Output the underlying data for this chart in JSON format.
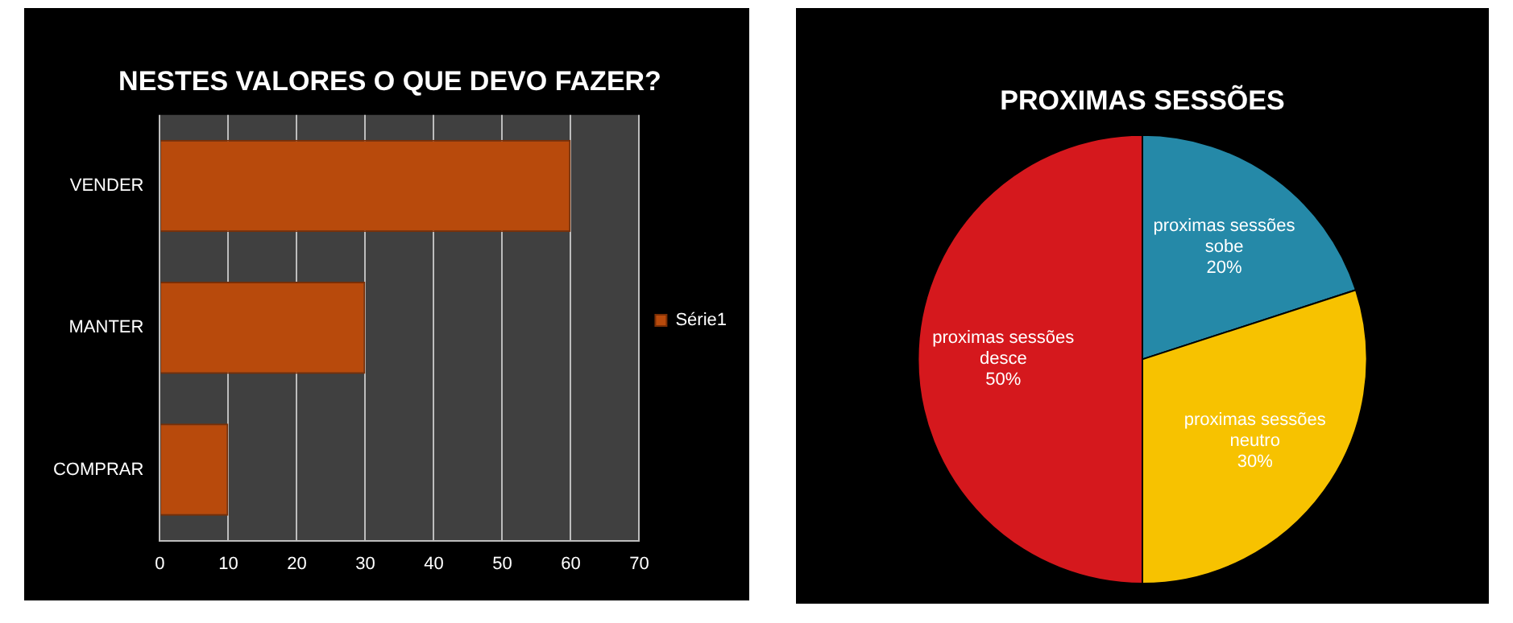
{
  "chart_data": [
    {
      "type": "bar",
      "title": "NESTES VALORES O QUE DEVO FAZER?",
      "orientation": "horizontal",
      "categories": [
        "VENDER",
        "MANTER",
        "COMPRAR"
      ],
      "series": [
        {
          "name": "Série1",
          "color": "#b84a0c",
          "values": [
            60,
            30,
            10
          ]
        }
      ],
      "xlim": [
        0,
        70
      ],
      "xticks": [
        0,
        10,
        20,
        30,
        40,
        50,
        60,
        70
      ],
      "grid": "x",
      "legend": "right"
    },
    {
      "type": "pie",
      "title": "PROXIMAS SESSÕES",
      "categories": [
        "proximas sessões sobe",
        "proximas sessões neutro",
        "proximas sessões desce"
      ],
      "values": [
        20,
        30,
        50
      ],
      "colors": [
        "#2589a8",
        "#f7c200",
        "#d5181d"
      ],
      "value_labels": [
        "20%",
        "30%",
        "50%"
      ]
    }
  ]
}
